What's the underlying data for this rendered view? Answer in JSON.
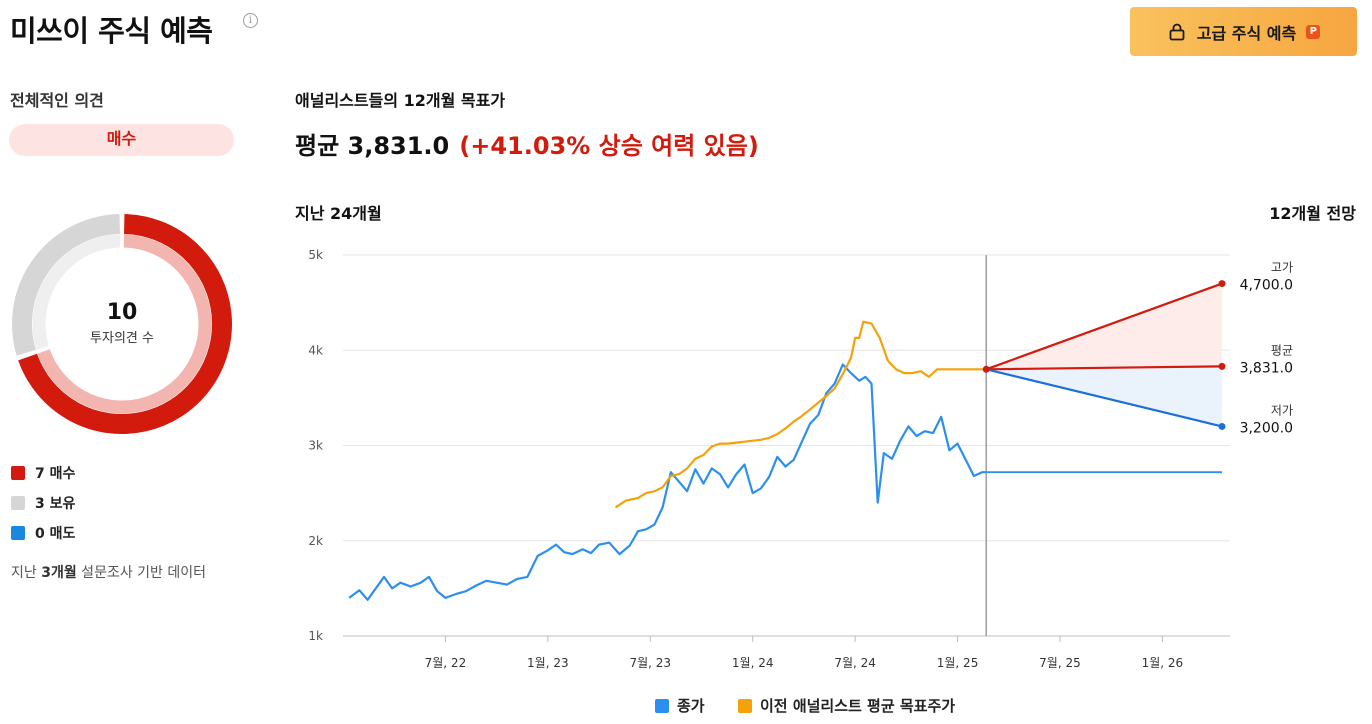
{
  "header": {
    "title": "미쓰이 주식 예측",
    "info_icon": "info-icon",
    "premium_label": "고급 주식 예측",
    "premium_badge": "P"
  },
  "rating": {
    "section_label": "전체적인 의견",
    "consensus": "매수",
    "total_count": "10",
    "total_label": "투자의견 수",
    "items": [
      {
        "label": "7 매수",
        "count": 7,
        "color": "#d21a0d"
      },
      {
        "label": "3 보유",
        "count": 3,
        "color": "#d6d6d6"
      },
      {
        "label": "0 매도",
        "count": 0,
        "color": "#1a88e0"
      }
    ],
    "note_prefix": "지난 ",
    "note_bold": "3개월",
    "note_suffix": " 설문조사 기반 데이터"
  },
  "target": {
    "section_label": "애널리스트들의 12개월 목표가",
    "avg_prefix": "평균 3,831.0",
    "upside": "(+41.03% 상승 여력 있음)"
  },
  "chart_data": {
    "type": "line",
    "left_label": "지난 24개월",
    "right_label": "12개월 전망",
    "ylim": [
      1000,
      5000
    ],
    "yticks": [
      {
        "v": 1000,
        "label": "1k"
      },
      {
        "v": 2000,
        "label": "2k"
      },
      {
        "v": 3000,
        "label": "3k"
      },
      {
        "v": 4000,
        "label": "4k"
      },
      {
        "v": 5000,
        "label": "5k"
      }
    ],
    "xlim": [
      2022.0,
      2026.33
    ],
    "xticks": [
      {
        "v": 2022.5,
        "label": "7월, 22"
      },
      {
        "v": 2023.0,
        "label": "1월, 23"
      },
      {
        "v": 2023.5,
        "label": "7월, 23"
      },
      {
        "v": 2024.0,
        "label": "1월, 24"
      },
      {
        "v": 2024.5,
        "label": "7월, 24"
      },
      {
        "v": 2025.0,
        "label": "1월, 25"
      },
      {
        "v": 2025.5,
        "label": "7월, 25"
      },
      {
        "v": 2026.0,
        "label": "1월, 26"
      }
    ],
    "today": 2025.14,
    "series": [
      {
        "name": "종가",
        "color": "#2c8ff0",
        "points": [
          [
            2022.03,
            1400
          ],
          [
            2022.08,
            1480
          ],
          [
            2022.12,
            1380
          ],
          [
            2022.16,
            1500
          ],
          [
            2022.2,
            1620
          ],
          [
            2022.24,
            1500
          ],
          [
            2022.28,
            1560
          ],
          [
            2022.33,
            1520
          ],
          [
            2022.38,
            1560
          ],
          [
            2022.42,
            1620
          ],
          [
            2022.46,
            1470
          ],
          [
            2022.5,
            1400
          ],
          [
            2022.55,
            1440
          ],
          [
            2022.6,
            1470
          ],
          [
            2022.65,
            1530
          ],
          [
            2022.7,
            1580
          ],
          [
            2022.75,
            1560
          ],
          [
            2022.8,
            1540
          ],
          [
            2022.85,
            1600
          ],
          [
            2022.9,
            1620
          ],
          [
            2022.95,
            1840
          ],
          [
            2023.0,
            1900
          ],
          [
            2023.04,
            1960
          ],
          [
            2023.08,
            1880
          ],
          [
            2023.12,
            1860
          ],
          [
            2023.17,
            1910
          ],
          [
            2023.21,
            1870
          ],
          [
            2023.25,
            1960
          ],
          [
            2023.3,
            1980
          ],
          [
            2023.35,
            1860
          ],
          [
            2023.4,
            1950
          ],
          [
            2023.44,
            2100
          ],
          [
            2023.48,
            2120
          ],
          [
            2023.52,
            2170
          ],
          [
            2023.56,
            2350
          ],
          [
            2023.6,
            2720
          ],
          [
            2023.64,
            2620
          ],
          [
            2023.68,
            2520
          ],
          [
            2023.72,
            2750
          ],
          [
            2023.76,
            2600
          ],
          [
            2023.8,
            2760
          ],
          [
            2023.84,
            2700
          ],
          [
            2023.88,
            2560
          ],
          [
            2023.92,
            2700
          ],
          [
            2023.96,
            2800
          ],
          [
            2024.0,
            2500
          ],
          [
            2024.04,
            2550
          ],
          [
            2024.08,
            2670
          ],
          [
            2024.12,
            2880
          ],
          [
            2024.16,
            2780
          ],
          [
            2024.2,
            2850
          ],
          [
            2024.24,
            3040
          ],
          [
            2024.28,
            3230
          ],
          [
            2024.32,
            3320
          ],
          [
            2024.36,
            3550
          ],
          [
            2024.4,
            3650
          ],
          [
            2024.44,
            3850
          ],
          [
            2024.48,
            3760
          ],
          [
            2024.52,
            3680
          ],
          [
            2024.55,
            3720
          ],
          [
            2024.58,
            3650
          ],
          [
            2024.61,
            2400
          ],
          [
            2024.64,
            2920
          ],
          [
            2024.68,
            2860
          ],
          [
            2024.72,
            3050
          ],
          [
            2024.76,
            3200
          ],
          [
            2024.8,
            3100
          ],
          [
            2024.84,
            3150
          ],
          [
            2024.88,
            3130
          ],
          [
            2024.92,
            3300
          ],
          [
            2024.96,
            2950
          ],
          [
            2025.0,
            3020
          ],
          [
            2025.04,
            2850
          ],
          [
            2025.08,
            2680
          ],
          [
            2025.12,
            2720
          ],
          [
            2025.14,
            2720
          ]
        ]
      },
      {
        "name": "이전 애널리스트 평균 목표주가",
        "color": "#f5a20a",
        "points": [
          [
            2023.33,
            2350
          ],
          [
            2023.38,
            2420
          ],
          [
            2023.44,
            2450
          ],
          [
            2023.48,
            2500
          ],
          [
            2023.52,
            2520
          ],
          [
            2023.56,
            2560
          ],
          [
            2023.6,
            2680
          ],
          [
            2023.64,
            2700
          ],
          [
            2023.68,
            2760
          ],
          [
            2023.72,
            2860
          ],
          [
            2023.76,
            2900
          ],
          [
            2023.8,
            2990
          ],
          [
            2023.84,
            3020
          ],
          [
            2023.88,
            3020
          ],
          [
            2023.92,
            3030
          ],
          [
            2023.96,
            3040
          ],
          [
            2024.0,
            3050
          ],
          [
            2024.04,
            3060
          ],
          [
            2024.08,
            3080
          ],
          [
            2024.12,
            3120
          ],
          [
            2024.16,
            3180
          ],
          [
            2024.2,
            3250
          ],
          [
            2024.24,
            3310
          ],
          [
            2024.28,
            3380
          ],
          [
            2024.32,
            3450
          ],
          [
            2024.36,
            3520
          ],
          [
            2024.4,
            3600
          ],
          [
            2024.44,
            3750
          ],
          [
            2024.48,
            3920
          ],
          [
            2024.5,
            4130
          ],
          [
            2024.52,
            4130
          ],
          [
            2024.54,
            4300
          ],
          [
            2024.58,
            4280
          ],
          [
            2024.62,
            4130
          ],
          [
            2024.66,
            3890
          ],
          [
            2024.7,
            3800
          ],
          [
            2024.74,
            3760
          ],
          [
            2024.78,
            3760
          ],
          [
            2024.82,
            3780
          ],
          [
            2024.86,
            3720
          ],
          [
            2024.9,
            3800
          ],
          [
            2024.95,
            3800
          ],
          [
            2025.0,
            3800
          ],
          [
            2025.05,
            3800
          ],
          [
            2025.1,
            3800
          ],
          [
            2025.14,
            3800
          ]
        ]
      }
    ],
    "close_extension": 2720,
    "forecast": [
      {
        "key": "high",
        "label": "고가",
        "value": 4700,
        "value_label": "4,700.0",
        "color": "#d21a0d"
      },
      {
        "key": "avg",
        "label": "평균",
        "value": 3831,
        "value_label": "3,831.0",
        "color": "#d21a0d"
      },
      {
        "key": "low",
        "label": "저가",
        "value": 3200,
        "value_label": "3,200.0",
        "color": "#1a6fdc"
      }
    ],
    "forecast_start_value": 3800
  },
  "legend": [
    {
      "label": "종가",
      "color": "#2c8ff0"
    },
    {
      "label": "이전 애널리스트 평균 목표주가",
      "color": "#f5a20a"
    }
  ]
}
